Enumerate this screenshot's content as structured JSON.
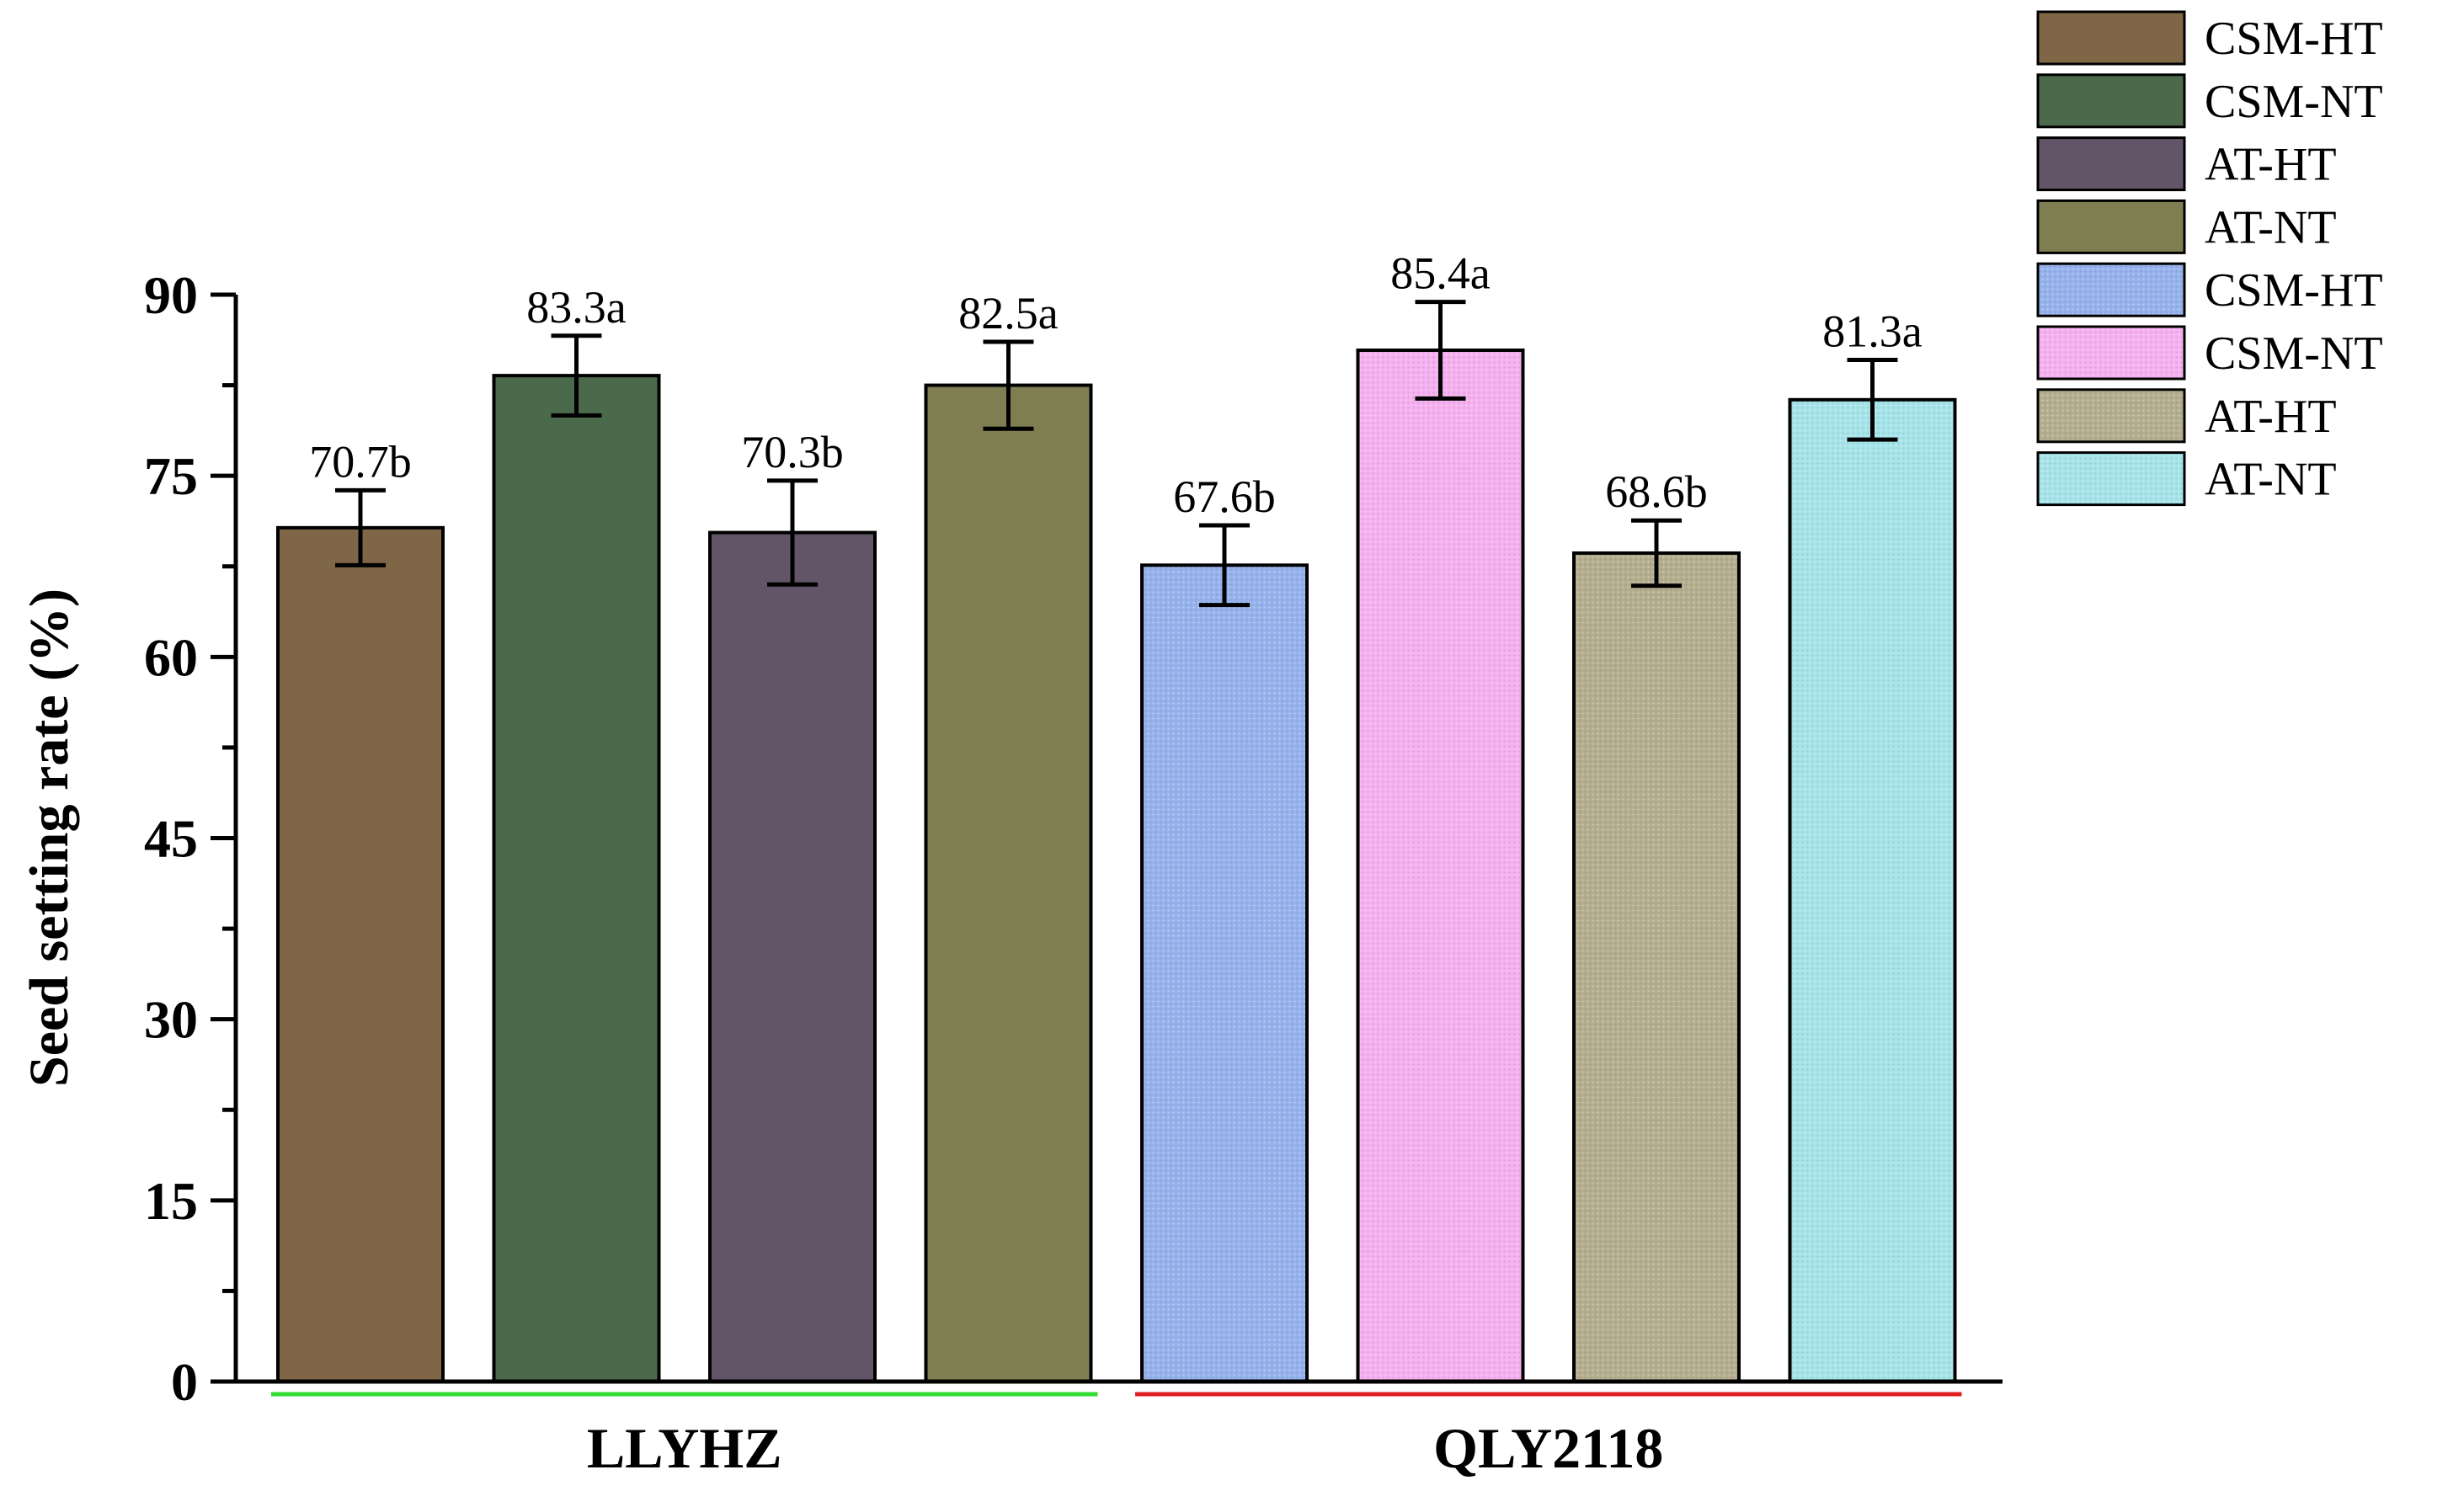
{
  "chart_data": {
    "type": "bar",
    "ylabel": "Seed setting rate (%)",
    "ylim": [
      0,
      90
    ],
    "yticks": [
      0,
      15,
      30,
      45,
      60,
      75,
      90
    ],
    "grid": false,
    "legend_position": "top-right",
    "groups": [
      {
        "name": "LLYHZ",
        "underline_color": "#33dd33"
      },
      {
        "name": "QLY2118",
        "underline_color": "#e02020"
      }
    ],
    "series": [
      {
        "name": "CSM-HT",
        "group": 0,
        "value": 70.7,
        "error": 3.1,
        "label": "70.7b",
        "color": "#7f6647",
        "pattern": false
      },
      {
        "name": "CSM-NT",
        "group": 0,
        "value": 83.3,
        "error": 3.3,
        "label": "83.3a",
        "color": "#4b6a4b",
        "pattern": false
      },
      {
        "name": "AT-HT",
        "group": 0,
        "value": 70.3,
        "error": 4.3,
        "label": "70.3b",
        "color": "#625568",
        "pattern": false
      },
      {
        "name": "AT-NT",
        "group": 0,
        "value": 82.5,
        "error": 3.6,
        "label": "82.5a",
        "color": "#7f7e52",
        "pattern": false
      },
      {
        "name": "CSM-HT",
        "group": 1,
        "value": 67.6,
        "error": 3.3,
        "label": "67.6b",
        "color": "#96b2ec",
        "pattern": true
      },
      {
        "name": "CSM-NT",
        "group": 1,
        "value": 85.4,
        "error": 4.0,
        "label": "85.4a",
        "color": "#f5b0f0",
        "pattern": true
      },
      {
        "name": "AT-HT",
        "group": 1,
        "value": 68.6,
        "error": 2.7,
        "label": "68.6b",
        "color": "#b4ad8e",
        "pattern": true
      },
      {
        "name": "AT-NT",
        "group": 1,
        "value": 81.3,
        "error": 3.3,
        "label": "81.3a",
        "color": "#a6e4ea",
        "pattern": true
      }
    ]
  }
}
